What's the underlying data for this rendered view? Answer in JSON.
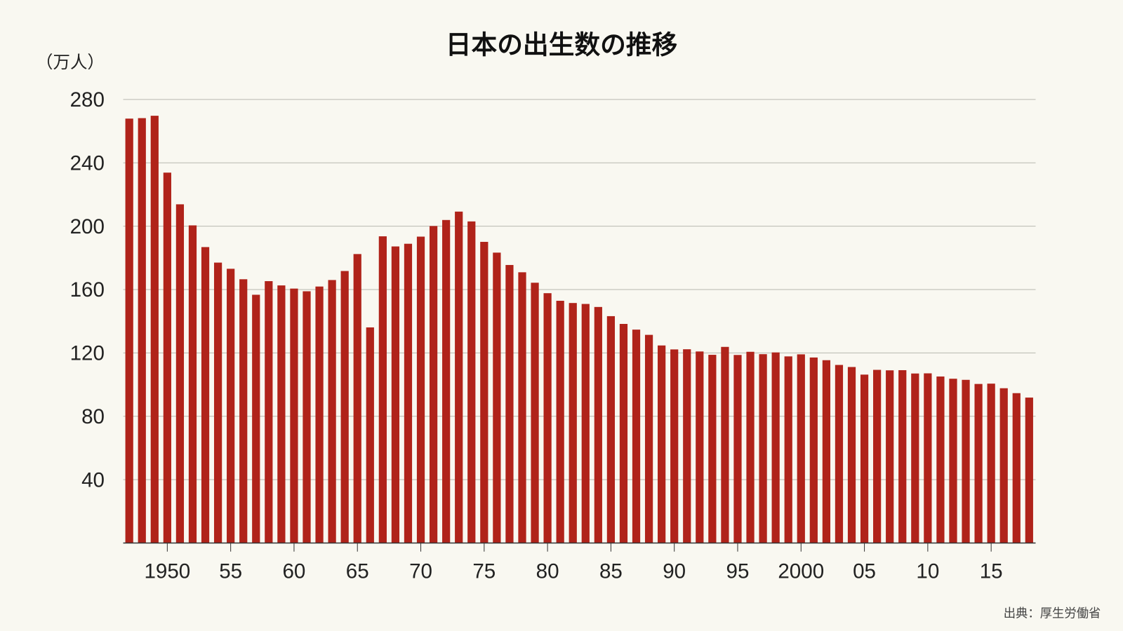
{
  "chart_data": {
    "type": "bar",
    "title": "日本の出生数の推移",
    "ylabel": "（万人）",
    "source": "出典：厚生労働省",
    "ylim": [
      0,
      280
    ],
    "yticks": [
      40,
      80,
      120,
      160,
      200,
      240,
      280
    ],
    "grid": true,
    "bar_color": "#b0231a",
    "background": "#f9f8f1",
    "x": [
      1947,
      1948,
      1949,
      1950,
      1951,
      1952,
      1953,
      1954,
      1955,
      1956,
      1957,
      1958,
      1959,
      1960,
      1961,
      1962,
      1963,
      1964,
      1965,
      1966,
      1967,
      1968,
      1969,
      1970,
      1971,
      1972,
      1973,
      1974,
      1975,
      1976,
      1977,
      1978,
      1979,
      1980,
      1981,
      1982,
      1983,
      1984,
      1985,
      1986,
      1987,
      1988,
      1989,
      1990,
      1991,
      1992,
      1993,
      1994,
      1995,
      1996,
      1997,
      1998,
      1999,
      2000,
      2001,
      2002,
      2003,
      2004,
      2005,
      2006,
      2007,
      2008,
      2009,
      2010,
      2011,
      2012,
      2013,
      2014,
      2015,
      2016,
      2017,
      2018
    ],
    "values": [
      267.9,
      268.2,
      269.7,
      233.8,
      213.8,
      200.5,
      186.8,
      177.0,
      173.1,
      166.5,
      156.7,
      165.3,
      162.6,
      160.6,
      158.9,
      161.9,
      166.0,
      171.7,
      182.4,
      136.1,
      193.6,
      187.2,
      188.9,
      193.4,
      200.1,
      203.9,
      209.2,
      203.0,
      190.1,
      183.3,
      175.5,
      170.9,
      164.3,
      157.7,
      152.9,
      151.5,
      150.9,
      149.0,
      143.2,
      138.3,
      134.7,
      131.4,
      124.7,
      122.2,
      122.3,
      120.9,
      118.8,
      123.8,
      118.7,
      120.7,
      119.2,
      120.3,
      117.8,
      119.1,
      117.1,
      115.4,
      112.4,
      111.1,
      106.3,
      109.3,
      109.0,
      109.1,
      107.0,
      107.1,
      105.1,
      103.7,
      103.0,
      100.4,
      100.6,
      97.7,
      94.6,
      91.8
    ],
    "xtick_labels": [
      {
        "year": 1950,
        "label": "1950"
      },
      {
        "year": 1955,
        "label": "55"
      },
      {
        "year": 1960,
        "label": "60"
      },
      {
        "year": 1965,
        "label": "65"
      },
      {
        "year": 1970,
        "label": "70"
      },
      {
        "year": 1975,
        "label": "75"
      },
      {
        "year": 1980,
        "label": "80"
      },
      {
        "year": 1985,
        "label": "85"
      },
      {
        "year": 1990,
        "label": "90"
      },
      {
        "year": 1995,
        "label": "95"
      },
      {
        "year": 2000,
        "label": "2000"
      },
      {
        "year": 2005,
        "label": "05"
      },
      {
        "year": 2010,
        "label": "10"
      },
      {
        "year": 2015,
        "label": "15"
      }
    ]
  }
}
